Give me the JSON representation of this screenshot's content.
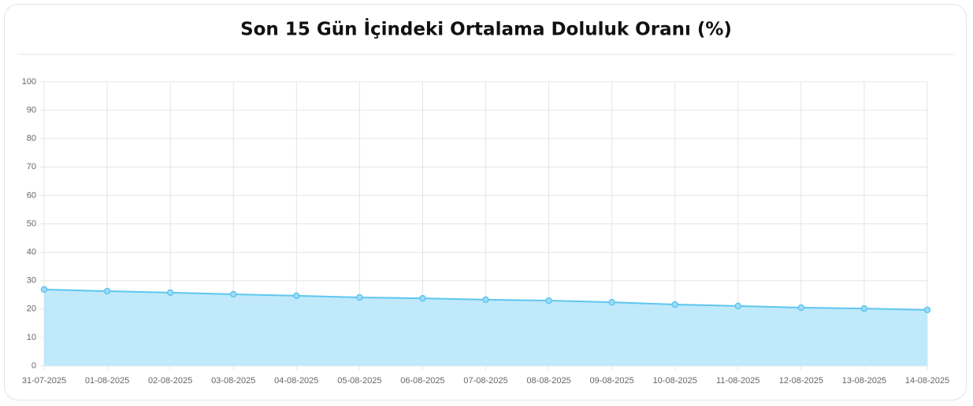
{
  "chart_data": {
    "type": "line",
    "title": "Son 15 Gün İçindeki Ortalama Doluluk Oranı (%)",
    "categories": [
      "31-07-2025",
      "01-08-2025",
      "02-08-2025",
      "03-08-2025",
      "04-08-2025",
      "05-08-2025",
      "06-08-2025",
      "07-08-2025",
      "08-08-2025",
      "09-08-2025",
      "10-08-2025",
      "11-08-2025",
      "12-08-2025",
      "13-08-2025",
      "14-08-2025"
    ],
    "values": [
      26.9,
      26.3,
      25.8,
      25.2,
      24.7,
      24.1,
      23.8,
      23.3,
      23.0,
      22.4,
      21.6,
      21.1,
      20.5,
      20.2,
      19.7
    ],
    "color": "#5ec6ef",
    "fill": "#c0e9fb",
    "ylim": [
      0,
      100
    ],
    "yticks": [
      0,
      10,
      20,
      30,
      40,
      50,
      60,
      70,
      80,
      90,
      100
    ],
    "grid": true
  }
}
